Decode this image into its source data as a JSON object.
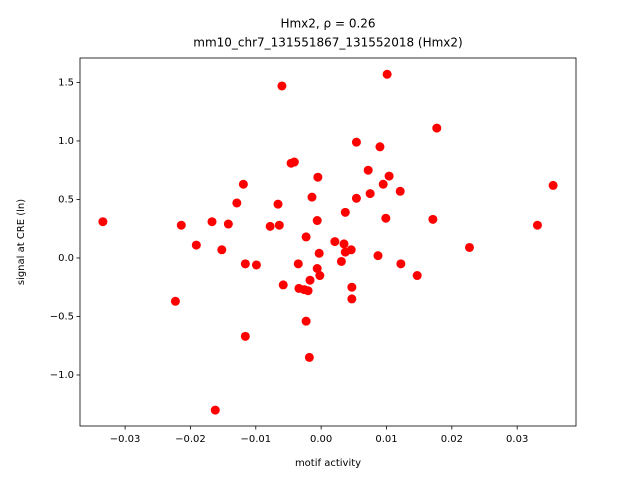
{
  "chart_data": {
    "type": "scatter",
    "title": "Hmx2, ρ = 0.26",
    "subtitle": "mm10_chr7_131551867_131552018 (Hmx2)",
    "x_label": "motif activity",
    "y_label": "signal at CRE (ln)",
    "color": "#ff0000",
    "xlim": [
      -0.0369,
      0.039
    ],
    "ylim": [
      -1.436,
      1.709
    ],
    "xticks": [
      {
        "value": -0.03,
        "label": "−0.03"
      },
      {
        "value": -0.02,
        "label": "−0.02"
      },
      {
        "value": -0.01,
        "label": "−0.01"
      },
      {
        "value": 0,
        "label": "0.00"
      },
      {
        "value": 0.01,
        "label": "0.01"
      },
      {
        "value": 0.02,
        "label": "0.02"
      },
      {
        "value": 0.03,
        "label": "0.03"
      }
    ],
    "yticks": [
      {
        "value": -1,
        "label": "−1.0"
      },
      {
        "value": -0.5,
        "label": "−0.5"
      },
      {
        "value": 0,
        "label": "0.0"
      },
      {
        "value": 0.5,
        "label": "0.5"
      },
      {
        "value": 1,
        "label": "1.0"
      },
      {
        "value": 1.5,
        "label": "1.5"
      }
    ],
    "x": [
      -0.0334,
      -0.0214,
      -0.0223,
      -0.0191,
      -0.0167,
      -0.0162,
      -0.0152,
      -0.0142,
      -0.0129,
      -0.0119,
      -0.0116,
      -0.0116,
      -0.0099,
      -0.0078,
      -0.0066,
      -0.0064,
      -0.006,
      -0.0058,
      -0.0046,
      -0.0041,
      -0.0035,
      -0.0034,
      -0.0026,
      -0.0023,
      -0.0023,
      -0.002,
      -0.0018,
      -0.0017,
      -0.0014,
      -0.0006,
      -0.0006,
      -0.0005,
      -0.0003,
      -0.0002,
      0.0021,
      0.0031,
      0.0035,
      0.0037,
      0.0037,
      0.0046,
      0.0047,
      0.0047,
      0.0054,
      0.0054,
      0.0072,
      0.0075,
      0.0087,
      0.009,
      0.0095,
      0.0099,
      0.0101,
      0.0104,
      0.0121,
      0.0122,
      0.0147,
      0.0171,
      0.0177,
      0.0227,
      0.0331,
      0.0355
    ],
    "values": [
      0.31,
      0.28,
      -0.37,
      0.11,
      0.31,
      -1.3,
      0.07,
      0.29,
      0.47,
      0.63,
      -0.05,
      -0.67,
      -0.06,
      0.27,
      0.46,
      0.28,
      1.47,
      -0.23,
      0.81,
      0.82,
      -0.05,
      -0.26,
      -0.27,
      0.18,
      -0.54,
      -0.28,
      -0.85,
      -0.19,
      0.52,
      -0.09,
      0.32,
      0.69,
      0.04,
      -0.15,
      0.14,
      -0.03,
      0.12,
      0.05,
      0.39,
      0.07,
      -0.25,
      -0.35,
      0.99,
      0.51,
      0.75,
      0.55,
      0.02,
      0.95,
      0.63,
      0.34,
      1.57,
      0.7,
      0.57,
      -0.05,
      -0.15,
      0.33,
      1.11,
      0.09,
      0.28,
      0.62
    ]
  }
}
